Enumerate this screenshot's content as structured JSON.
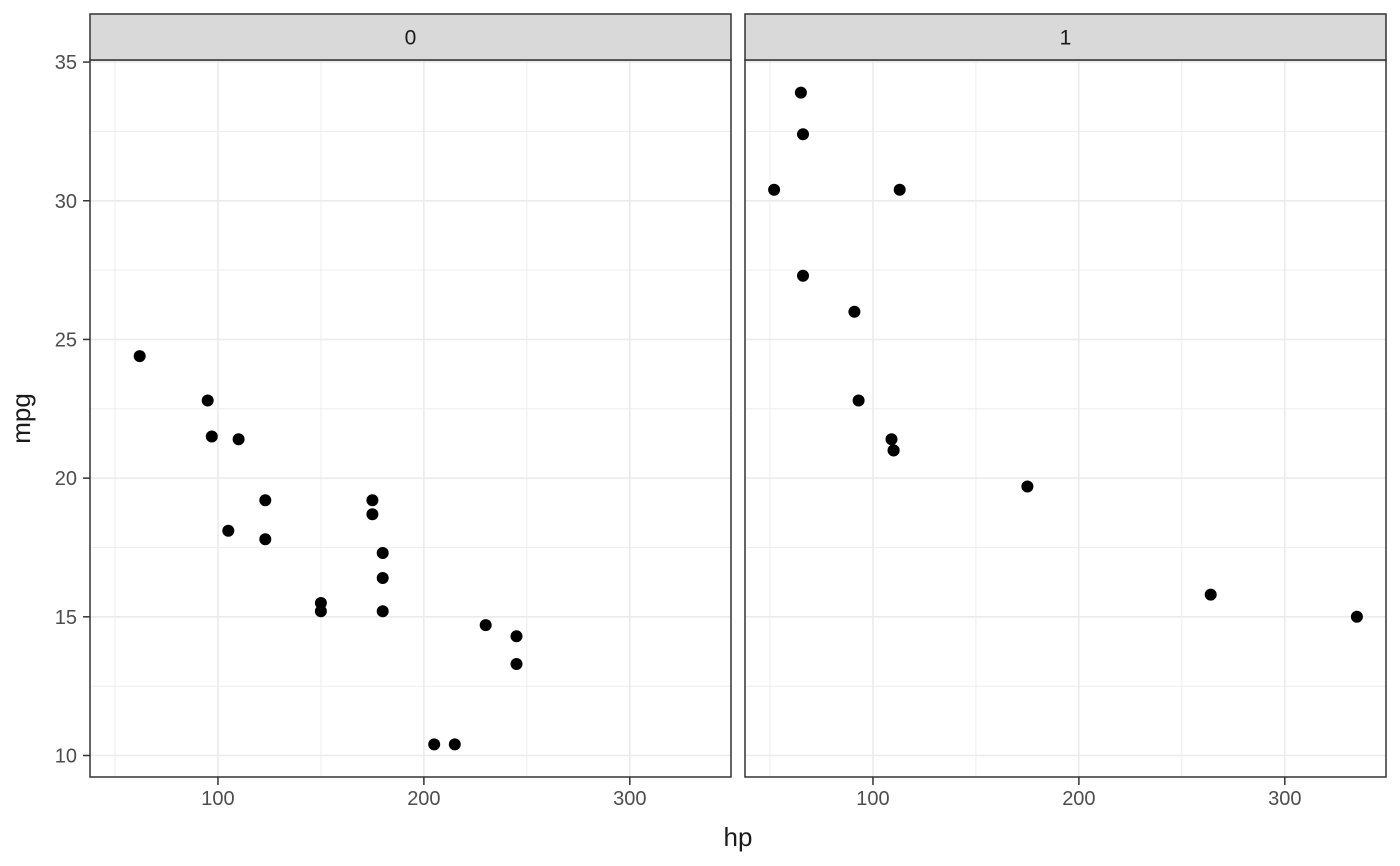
{
  "chart_data": {
    "type": "scatter",
    "title": "",
    "xlabel": "hp",
    "ylabel": "mpg",
    "legend": "none",
    "grid": true,
    "facet_labels": [
      "0",
      "1"
    ],
    "x_domain": [
      37.85,
      349.15
    ],
    "y_domain": [
      9.225,
      35.075
    ],
    "x_major_ticks": [
      100,
      200,
      300
    ],
    "x_minor_gridlines": [
      50,
      150,
      250
    ],
    "y_major_ticks": [
      10,
      15,
      20,
      25,
      30,
      35
    ],
    "y_minor_gridlines": [
      12.5,
      17.5,
      22.5,
      27.5,
      32.5
    ],
    "facets": [
      {
        "label": "0",
        "points": [
          [
            110,
            21.4
          ],
          [
            175,
            18.7
          ],
          [
            105,
            18.1
          ],
          [
            245,
            14.3
          ],
          [
            62,
            24.4
          ],
          [
            95,
            22.8
          ],
          [
            123,
            19.2
          ],
          [
            123,
            17.8
          ],
          [
            180,
            16.4
          ],
          [
            180,
            17.3
          ],
          [
            180,
            15.2
          ],
          [
            205,
            10.4
          ],
          [
            215,
            10.4
          ],
          [
            230,
            14.7
          ],
          [
            97,
            21.5
          ],
          [
            150,
            15.5
          ],
          [
            150,
            15.2
          ],
          [
            245,
            13.3
          ],
          [
            175,
            19.2
          ]
        ]
      },
      {
        "label": "1",
        "points": [
          [
            110,
            21.0
          ],
          [
            110,
            21.0
          ],
          [
            93,
            22.8
          ],
          [
            66,
            32.4
          ],
          [
            52,
            30.4
          ],
          [
            65,
            33.9
          ],
          [
            66,
            27.3
          ],
          [
            91,
            26.0
          ],
          [
            113,
            30.4
          ],
          [
            264,
            15.8
          ],
          [
            175,
            19.7
          ],
          [
            335,
            15.0
          ],
          [
            109,
            21.4
          ]
        ]
      }
    ]
  },
  "style": {
    "background": "#FFFFFF",
    "point_color": "#000000",
    "strip_fill": "#D9D9D9",
    "panel_border": "#333333",
    "grid_color": "#EBEBEB",
    "tick_color": "#333333",
    "tick_label_color": "#4D4D4D",
    "axis_title_color": "#1A1A1A",
    "strip_text_color": "#1A1A1A"
  }
}
